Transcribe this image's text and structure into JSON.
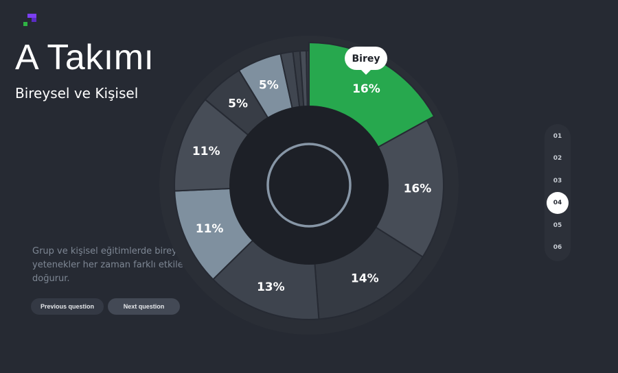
{
  "brand": {
    "logo_icon": "pixel-logo-icon",
    "colors": {
      "purple": "#7b3ff2",
      "dark_purple": "#5a2cc4",
      "green": "#2fb344"
    }
  },
  "header": {
    "title": "A Takımı",
    "subtitle": "Bireysel ve Kişisel"
  },
  "description": "Grup ve kişisel eğitimlerde bireysel yetenekler her zaman farklı etkiler doğurur.",
  "buttons": {
    "previous": "Previous question",
    "next": "Next question"
  },
  "stepper": {
    "steps": [
      "01",
      "02",
      "03",
      "04",
      "05",
      "06"
    ],
    "active": 3
  },
  "chart_data": {
    "type": "pie",
    "variant": "donut",
    "labels": [
      "16%",
      "16%",
      "14%",
      "13%",
      "11%",
      "11%",
      "5%",
      "5%",
      "",
      "",
      "",
      ""
    ],
    "values": [
      16,
      16,
      14,
      13,
      11,
      11,
      5,
      5,
      1.4,
      0.8,
      0.7,
      0.3
    ],
    "colors": [
      "#27a84e",
      "#474d57",
      "#353a43",
      "#3e444e",
      "#7f909f",
      "#474d57",
      "#383d46",
      "#7f909f",
      "#404650",
      "#383d46",
      "#474d57",
      "#353a43"
    ],
    "highlight": {
      "index": 0,
      "label": "Birey"
    },
    "start_angle_deg": 0
  }
}
